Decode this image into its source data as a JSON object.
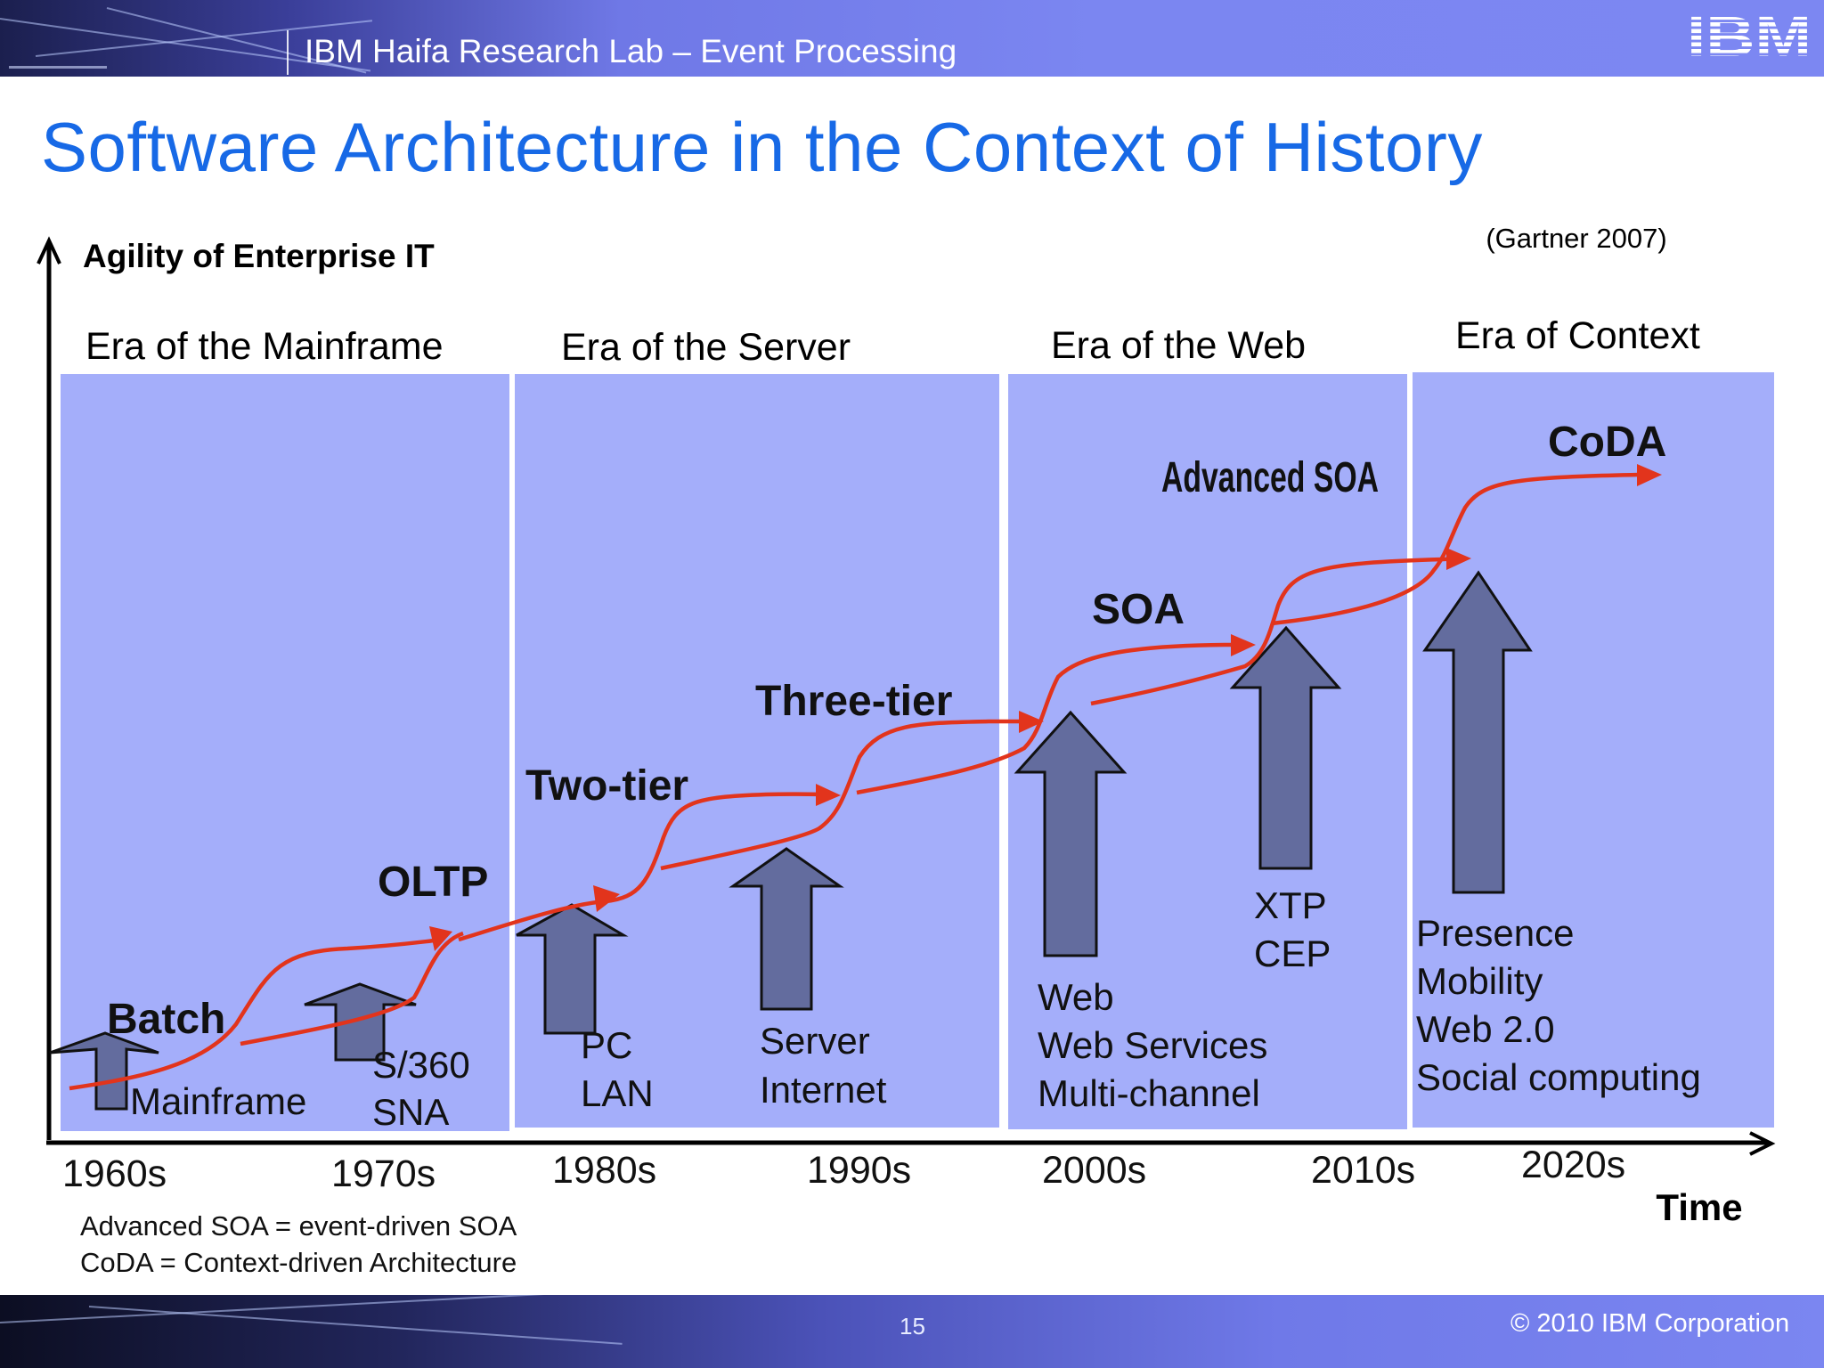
{
  "header": {
    "title": "IBM Haifa Research Lab – Event Processing",
    "logo_text": "IBM"
  },
  "slide_title": "Software Architecture in the Context of History",
  "source": "(Gartner 2007)",
  "axes": {
    "y_label": "Agility of Enterprise IT",
    "x_label": "Time"
  },
  "eras": [
    {
      "label": "Era of the Mainframe"
    },
    {
      "label": "Era of the Server"
    },
    {
      "label": "Era of the Web"
    },
    {
      "label": "Era of Context"
    }
  ],
  "decades": [
    "1960s",
    "1970s",
    "1980s",
    "1990s",
    "2000s",
    "2010s",
    "2020s"
  ],
  "architectures": [
    "Batch",
    "OLTP",
    "Two-tier",
    "Three-tier",
    "SOA",
    "Advanced SOA",
    "CoDA"
  ],
  "technologies": [
    [
      "Mainframe"
    ],
    [
      "S/360",
      "SNA"
    ],
    [
      "PC",
      "LAN"
    ],
    [
      "Server",
      "Internet"
    ],
    [
      "Web",
      "Web Services",
      "Multi-channel"
    ],
    [
      "XTP",
      "CEP"
    ],
    [
      "Presence",
      "Mobility",
      "Web 2.0",
      "Social computing"
    ]
  ],
  "footnotes": [
    "Advanced SOA = event-driven SOA",
    "CoDA = Context-driven Architecture"
  ],
  "footer": {
    "page": "15",
    "copyright": "© 2010 IBM Corporation"
  },
  "colors": {
    "title_blue": "#1769e6",
    "era_panel": "#a4aefa",
    "arrow_fill": "#636c9e",
    "trend_line": "#e2341c",
    "header_band": "#7b86f1"
  }
}
